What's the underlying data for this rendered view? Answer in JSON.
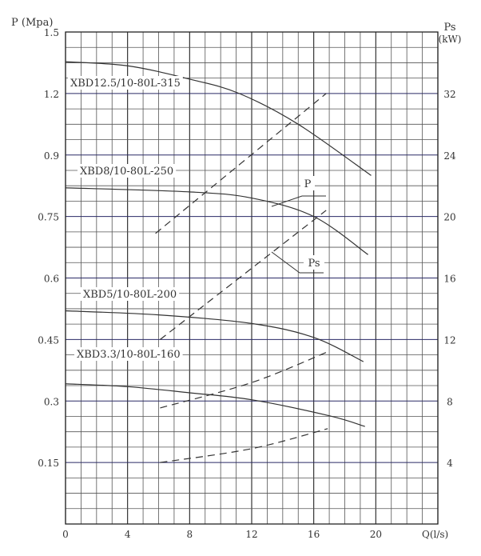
{
  "chart_data": {
    "type": "line",
    "y_left_label": "P (Mpa)",
    "y_right_label_line1": "Ps",
    "y_right_label_line2": "(kW)",
    "xlabel": "Q(l/s)",
    "xlim": [
      0,
      24
    ],
    "x_ticks": [
      0,
      4,
      8,
      12,
      16,
      20
    ],
    "y_left_ticks": [
      "0.15",
      "0.3",
      "0.45",
      "0.6",
      "0.75",
      "0.9",
      "1.2",
      "1.5"
    ],
    "y_right_ticks": [
      "4",
      "8",
      "12",
      "16",
      "20",
      "24",
      "32"
    ],
    "grid": true,
    "series": [
      {
        "name": "XBD12.5/10-80L-315",
        "kind": "P",
        "points": [
          [
            0,
            1.355
          ],
          [
            4,
            1.335
          ],
          [
            8,
            1.27
          ],
          [
            11.2,
            1.2
          ],
          [
            15,
            1.05
          ],
          [
            19.7,
            0.85
          ]
        ]
      },
      {
        "name": "XBD12.5/10-80L-315",
        "kind": "Ps",
        "points": [
          [
            5.8,
            18.9
          ],
          [
            16.8,
            32
          ]
        ]
      },
      {
        "name": "XBD8/10-80L-250",
        "kind": "P",
        "points": [
          [
            0,
            0.82
          ],
          [
            8,
            0.81
          ],
          [
            12,
            0.795
          ],
          [
            16,
            0.75
          ],
          [
            19.5,
            0.657
          ]
        ]
      },
      {
        "name": "XBD8/10-80L-250",
        "kind": "Ps",
        "points": [
          [
            6.1,
            12
          ],
          [
            16.8,
            20.4
          ]
        ]
      },
      {
        "name": "XBD5/10-80L-200",
        "kind": "P",
        "points": [
          [
            0,
            0.52
          ],
          [
            6,
            0.51
          ],
          [
            12,
            0.489
          ],
          [
            16,
            0.455
          ],
          [
            19.2,
            0.396
          ]
        ]
      },
      {
        "name": "XBD5/10-80L-200",
        "kind": "Ps",
        "points": [
          [
            6.1,
            7.55
          ],
          [
            12,
            9.2
          ],
          [
            16.9,
            11.2
          ]
        ]
      },
      {
        "name": "XBD3.3/10-80L-160",
        "kind": "P",
        "points": [
          [
            0,
            0.342
          ],
          [
            4,
            0.335
          ],
          [
            8,
            0.32
          ],
          [
            12,
            0.303
          ],
          [
            17,
            0.264
          ],
          [
            19.3,
            0.238
          ]
        ]
      },
      {
        "name": "XBD3.3/10-80L-160",
        "kind": "Ps",
        "points": [
          [
            6.1,
            4
          ],
          [
            12,
            4.9
          ],
          [
            16.9,
            6.2
          ]
        ]
      }
    ],
    "annotations": [
      "P",
      "Ps"
    ]
  }
}
